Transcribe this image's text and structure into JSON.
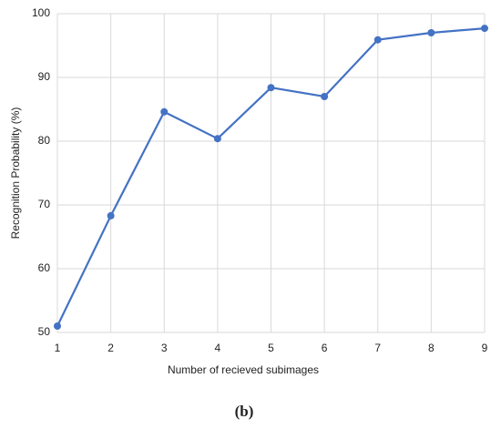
{
  "chart_data": {
    "type": "line",
    "x_label": "Number of recieved subimages",
    "y_label": "Recognition Probability (%)",
    "caption": "(b)",
    "x": [
      1,
      2,
      3,
      4,
      5,
      6,
      7,
      8,
      9
    ],
    "series": [
      {
        "color": "#4472c4",
        "values": [
          51,
          68.3,
          84.6,
          80.4,
          88.4,
          87,
          95.9,
          97,
          97.7
        ]
      }
    ],
    "xlim": [
      1,
      9
    ],
    "xticks": [
      1,
      2,
      3,
      4,
      5,
      6,
      7,
      8,
      9
    ],
    "ylim": [
      50,
      100
    ],
    "yticks": [
      50,
      60,
      70,
      80,
      90,
      100
    ],
    "grid": true
  }
}
